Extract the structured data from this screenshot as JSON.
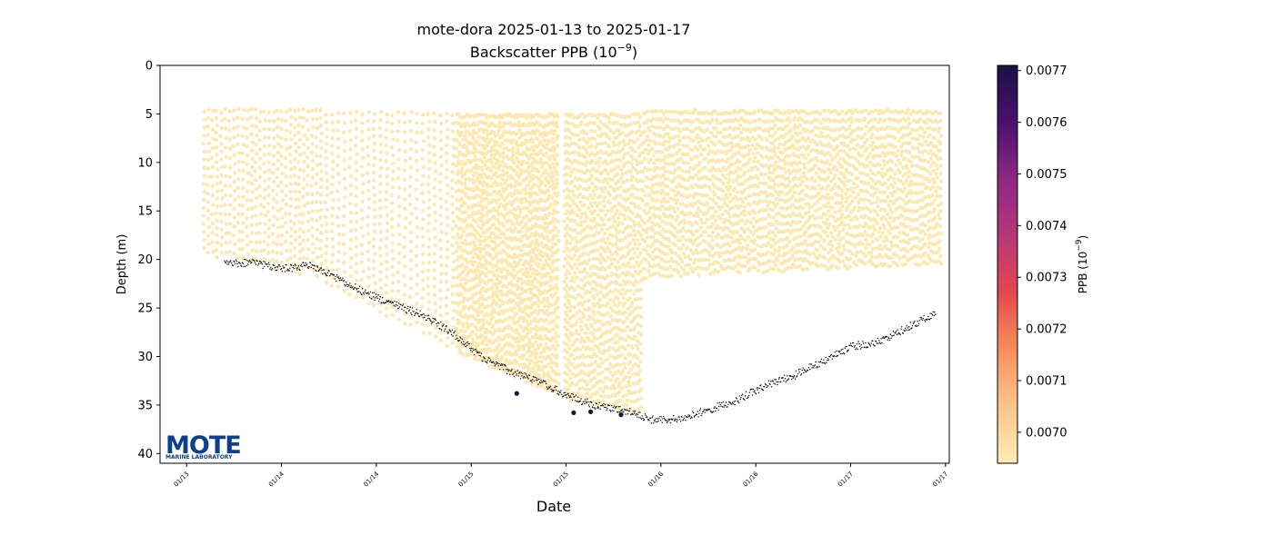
{
  "chart_data": {
    "type": "scatter",
    "title": "mote-dora 2025-01-13 to 2025-01-17",
    "subtitle": "Backscatter PPB (10",
    "subtitle_sup": "−9",
    "subtitle_close": ")",
    "xlabel": "Date",
    "ylabel": "Depth (m)",
    "x_ticks": [
      "01/13",
      "01/14",
      "01/14",
      "01/15",
      "01/15",
      "01/16",
      "01/16",
      "01/17",
      "01/17"
    ],
    "y_ticks": [
      0,
      5,
      10,
      15,
      20,
      25,
      30,
      35,
      40
    ],
    "ylim": [
      41,
      0
    ],
    "y_inverted": true,
    "x_axis_units": "days after 2025-01-13 00:00",
    "xlim": [
      -0.14,
      4.02
    ],
    "grid": false,
    "colorbar": {
      "label": "PPB (10",
      "label_sup": "−9",
      "label_close": ")",
      "ticks": [
        0.007,
        0.0071,
        0.0072,
        0.0073,
        0.0074,
        0.0075,
        0.0076,
        0.0077
      ],
      "range": [
        0.00694,
        0.00771
      ],
      "colormap": "magma_r",
      "colors": [
        "#fcecb3",
        "#fcc58c",
        "#f88e5c",
        "#e2494c",
        "#b7377a",
        "#8c2981",
        "#4a1170",
        "#1c1044"
      ]
    },
    "series": [
      {
        "kind": "profile_samples",
        "note": "yoyo profiles; each sample colored by backscatter value",
        "value": 0.00695,
        "color": "#fde9b0",
        "segments": [
          {
            "x_start": 0.08,
            "x_end": 0.72,
            "top": 4.5,
            "bottom_start": 19.5,
            "bottom_end": 22.0,
            "profiles": 28
          },
          {
            "x_start": 0.72,
            "x_end": 1.42,
            "top": 4.8,
            "bottom_start": 22.5,
            "bottom_end": 29.5,
            "profiles": 22
          },
          {
            "x_start": 1.42,
            "x_end": 2.0,
            "top": 5.0,
            "bottom_start": 29.5,
            "bottom_end": 34.5,
            "profiles": 60
          },
          {
            "x_start": 2.0,
            "x_end": 2.4,
            "top": 5.0,
            "bottom_start": 34.5,
            "bottom_end": 36.0,
            "profiles": 30
          },
          {
            "x_start": 2.4,
            "x_end": 3.98,
            "top": 4.6,
            "bottom_start": 22.0,
            "bottom_end": 20.5,
            "profiles": 120
          }
        ],
        "gaps": [
          [
            1.96,
            1.99
          ]
        ]
      },
      {
        "kind": "bottom_trace",
        "color": "#000000",
        "points": [
          [
            0.2,
            20.5
          ],
          [
            0.35,
            20.3
          ],
          [
            0.5,
            21.0
          ],
          [
            0.65,
            20.6
          ],
          [
            0.8,
            22.0
          ],
          [
            0.95,
            23.5
          ],
          [
            1.1,
            24.7
          ],
          [
            1.25,
            25.8
          ],
          [
            1.4,
            27.5
          ],
          [
            1.55,
            30.0
          ],
          [
            1.7,
            31.5
          ],
          [
            1.85,
            32.5
          ],
          [
            2.0,
            34.0
          ],
          [
            2.15,
            35.0
          ],
          [
            2.3,
            35.5
          ],
          [
            2.45,
            36.5
          ],
          [
            2.6,
            36.5
          ],
          [
            2.75,
            35.5
          ],
          [
            2.9,
            34.5
          ],
          [
            3.05,
            33.0
          ],
          [
            3.2,
            32.0
          ],
          [
            3.35,
            30.5
          ],
          [
            3.5,
            29.0
          ],
          [
            3.65,
            28.5
          ],
          [
            3.8,
            27.0
          ],
          [
            3.95,
            25.5
          ]
        ]
      },
      {
        "kind": "high_values",
        "points": [
          {
            "x": 1.74,
            "y": 33.8,
            "value": 0.00771
          },
          {
            "x": 2.04,
            "y": 35.8,
            "value": 0.0077
          },
          {
            "x": 2.13,
            "y": 35.7,
            "value": 0.00771
          },
          {
            "x": 2.29,
            "y": 36.0,
            "value": 0.00768
          }
        ]
      }
    ]
  },
  "logo": {
    "text": "MOTE",
    "subtext": "MARINE LABORATORY",
    "color": "#0c3f8c"
  }
}
